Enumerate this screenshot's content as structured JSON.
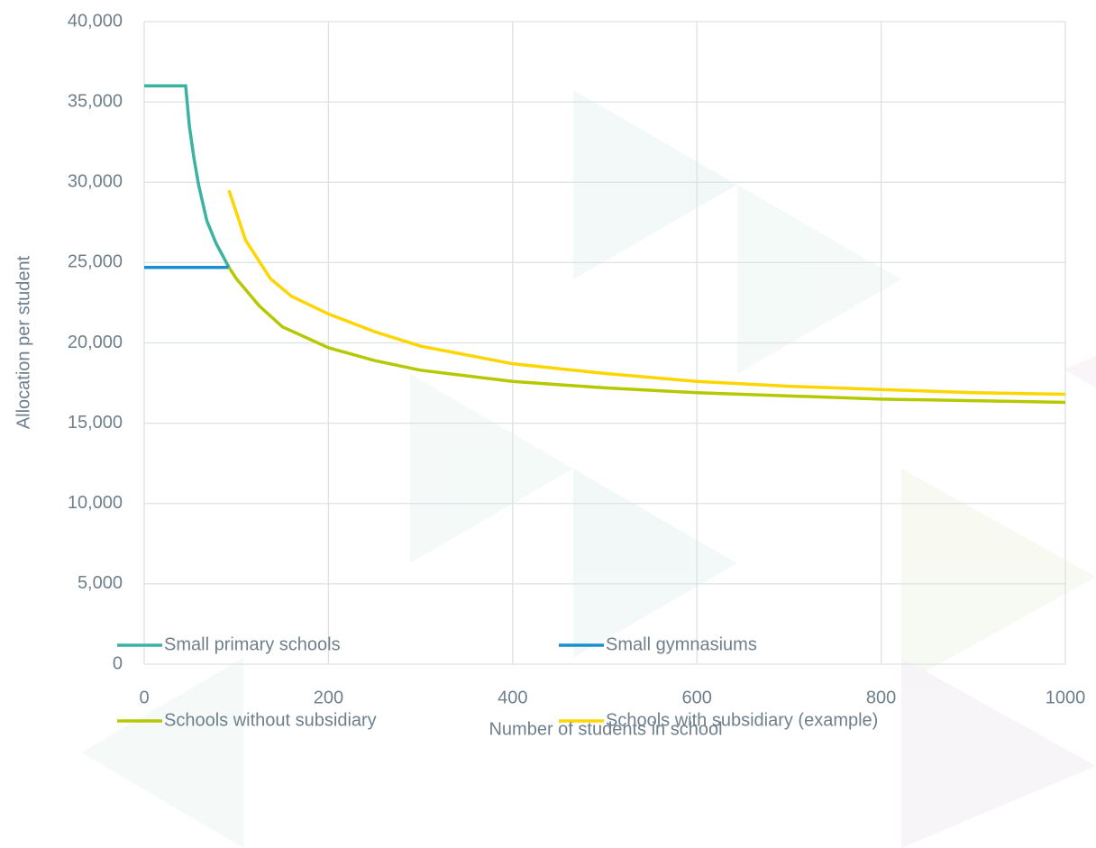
{
  "chart_data": {
    "type": "line",
    "x_label": "Number of students in school",
    "y_label": "Allocation per student",
    "xlim": [
      0,
      1000
    ],
    "xticks": [
      0,
      200,
      400,
      600,
      800,
      1000
    ],
    "ylim": [
      0,
      40000
    ],
    "yticks": [
      0,
      {
        "value": 5000,
        "label": "5,000"
      },
      {
        "value": 10000,
        "label": "10,000"
      },
      {
        "value": 15000,
        "label": "15,000"
      },
      {
        "value": 20000,
        "label": "20,000"
      },
      {
        "value": 25000,
        "label": "25,000"
      },
      {
        "value": 30000,
        "label": "30,000"
      },
      {
        "value": 35000,
        "label": "35,000"
      },
      {
        "value": 40000,
        "label": "40,000"
      }
    ],
    "grid": true,
    "series": [
      {
        "name": "Small primary schools",
        "color": "#3bb3a3",
        "x": [
          0,
          45,
          49,
          54,
          59,
          68,
          78,
          92
        ],
        "values": [
          36000,
          36000,
          33500,
          31500,
          29850,
          27600,
          26200,
          24700
        ]
      },
      {
        "name": "Small gymnasiums",
        "color": "#1a8fcf",
        "x": [
          0,
          92
        ],
        "values": [
          24700,
          24700
        ]
      },
      {
        "name": "Schools without subsidiary",
        "color": "#b5c800",
        "x": [
          92,
          100,
          125,
          150,
          200,
          250,
          300,
          400,
          500,
          600,
          700,
          800,
          900,
          1000
        ],
        "values": [
          24700,
          24000,
          22300,
          21000,
          19700,
          18900,
          18300,
          17600,
          17200,
          16900,
          16700,
          16500,
          16400,
          16300
        ]
      },
      {
        "name": "Schools with subsidiary (example)",
        "color": "#ffd500",
        "x": [
          92,
          110,
          137,
          160,
          200,
          250,
          300,
          400,
          500,
          600,
          700,
          800,
          900,
          1000
        ],
        "values": [
          29500,
          26400,
          24000,
          22900,
          21800,
          20700,
          19800,
          18700,
          18100,
          17600,
          17300,
          17100,
          16900,
          16800
        ]
      }
    ]
  }
}
